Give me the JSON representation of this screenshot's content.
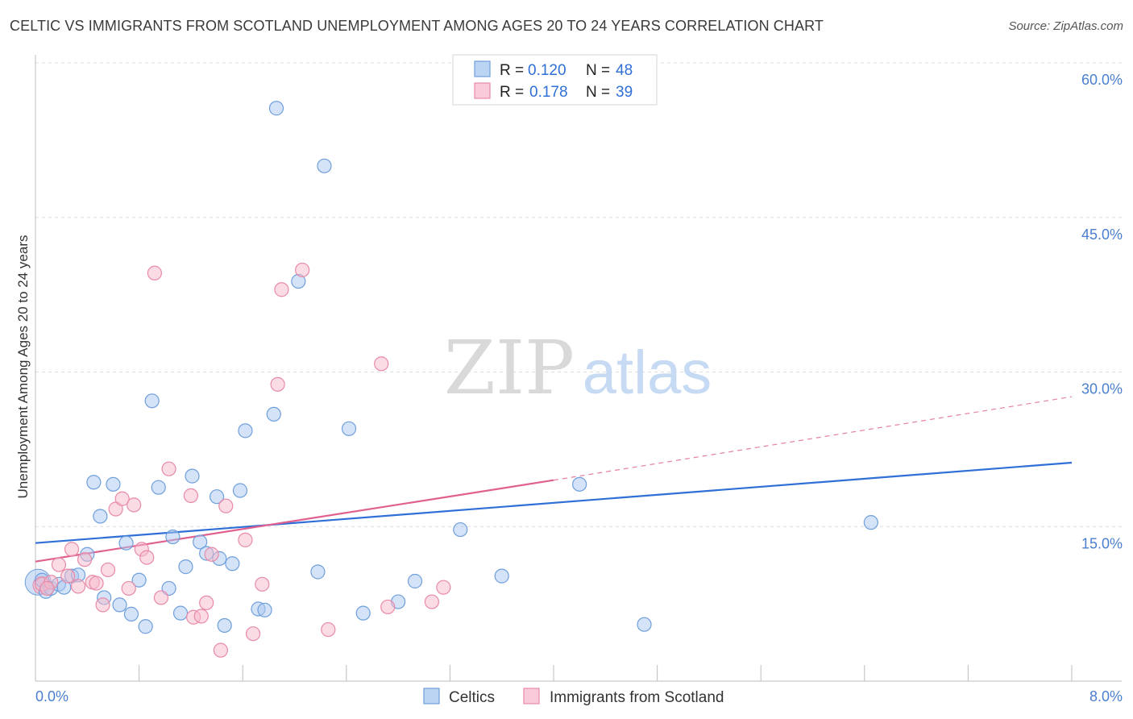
{
  "title": "CELTIC VS IMMIGRANTS FROM SCOTLAND UNEMPLOYMENT AMONG AGES 20 TO 24 YEARS CORRELATION CHART",
  "source": "Source: ZipAtlas.com",
  "watermark": {
    "zip": "ZIP",
    "atlas": "atlas"
  },
  "legend": {
    "rows": [
      {
        "r_label": "R =",
        "r_value": "0.120",
        "n_label": "N =",
        "n_value": "48"
      },
      {
        "r_label": "R =",
        "r_value": "0.178",
        "n_label": "N =",
        "n_value": "39"
      }
    ]
  },
  "bottom_legend": {
    "celtics": "Celtics",
    "scotland": "Immigrants from Scotland"
  },
  "colors": {
    "celtics_fill": "#a9c8f0",
    "celtics_stroke": "#6f9fdc",
    "celtics_line": "#2f6fd6",
    "scotland_fill": "#f7b9cc",
    "scotland_stroke": "#e88aa8",
    "scotland_line": "#e0608f",
    "tick_color": "#4a7fcf"
  },
  "chart_data": {
    "type": "scatter",
    "title": "CELTIC VS IMMIGRANTS FROM SCOTLAND UNEMPLOYMENT AMONG AGES 20 TO 24 YEARS CORRELATION CHART",
    "xlabel": "",
    "ylabel": "Unemployment Among Ages 20 to 24 years",
    "xlim": [
      0,
      8
    ],
    "ylim": [
      0,
      60
    ],
    "x_ticks": [
      "0.0%",
      "8.0%"
    ],
    "y_ticks": [
      "15.0%",
      "30.0%",
      "45.0%",
      "60.0%"
    ],
    "y_tick_values": [
      15,
      30,
      45,
      60
    ],
    "grid": true,
    "legend_position": "top-center",
    "series": [
      {
        "name": "Celtics",
        "r": 0.12,
        "n": 48,
        "points": [
          [
            0.05,
            9.8
          ],
          [
            0.08,
            8.7
          ],
          [
            0.12,
            9.0
          ],
          [
            0.18,
            9.4
          ],
          [
            0.28,
            10.2
          ],
          [
            0.33,
            10.3
          ],
          [
            0.4,
            12.3
          ],
          [
            0.45,
            19.3
          ],
          [
            0.5,
            16.0
          ],
          [
            0.6,
            19.1
          ],
          [
            0.53,
            8.1
          ],
          [
            0.65,
            7.4
          ],
          [
            0.7,
            13.4
          ],
          [
            0.74,
            6.5
          ],
          [
            0.8,
            9.8
          ],
          [
            0.85,
            5.3
          ],
          [
            0.9,
            27.2
          ],
          [
            0.95,
            18.8
          ],
          [
            1.03,
            9.0
          ],
          [
            1.06,
            14.0
          ],
          [
            1.12,
            6.6
          ],
          [
            1.16,
            11.1
          ],
          [
            1.21,
            19.9
          ],
          [
            1.27,
            13.5
          ],
          [
            1.32,
            12.4
          ],
          [
            1.4,
            17.9
          ],
          [
            1.42,
            11.9
          ],
          [
            1.46,
            5.4
          ],
          [
            1.52,
            11.4
          ],
          [
            1.58,
            18.5
          ],
          [
            1.62,
            24.3
          ],
          [
            1.72,
            7.0
          ],
          [
            1.77,
            6.9
          ],
          [
            1.84,
            25.9
          ],
          [
            1.86,
            55.6
          ],
          [
            2.03,
            38.8
          ],
          [
            2.18,
            10.6
          ],
          [
            2.23,
            50.0
          ],
          [
            2.42,
            24.5
          ],
          [
            2.53,
            6.6
          ],
          [
            2.8,
            7.7
          ],
          [
            2.93,
            9.7
          ],
          [
            3.28,
            14.7
          ],
          [
            3.6,
            10.2
          ],
          [
            4.2,
            19.1
          ],
          [
            4.7,
            5.5
          ],
          [
            6.45,
            15.4
          ],
          [
            0.22,
            9.1
          ]
        ]
      },
      {
        "name": "Immigrants from Scotland",
        "r": 0.178,
        "n": 39,
        "points": [
          [
            0.05,
            9.4
          ],
          [
            0.12,
            9.6
          ],
          [
            0.18,
            11.3
          ],
          [
            0.25,
            10.2
          ],
          [
            0.28,
            12.8
          ],
          [
            0.33,
            9.2
          ],
          [
            0.38,
            11.8
          ],
          [
            0.44,
            9.6
          ],
          [
            0.47,
            9.5
          ],
          [
            0.52,
            7.4
          ],
          [
            0.56,
            10.8
          ],
          [
            0.62,
            16.7
          ],
          [
            0.67,
            17.7
          ],
          [
            0.72,
            9.0
          ],
          [
            0.76,
            17.1
          ],
          [
            0.82,
            12.8
          ],
          [
            0.86,
            12.0
          ],
          [
            0.92,
            39.6
          ],
          [
            0.97,
            8.1
          ],
          [
            1.03,
            20.6
          ],
          [
            1.2,
            18.0
          ],
          [
            1.22,
            6.2
          ],
          [
            1.28,
            6.3
          ],
          [
            1.32,
            7.6
          ],
          [
            1.36,
            12.3
          ],
          [
            1.43,
            3.0
          ],
          [
            1.47,
            17.0
          ],
          [
            1.62,
            13.7
          ],
          [
            1.68,
            4.6
          ],
          [
            1.75,
            9.4
          ],
          [
            1.87,
            28.8
          ],
          [
            1.9,
            38.0
          ],
          [
            2.06,
            39.9
          ],
          [
            2.26,
            5.0
          ],
          [
            2.67,
            30.8
          ],
          [
            2.72,
            7.2
          ],
          [
            3.06,
            7.7
          ],
          [
            3.15,
            9.1
          ],
          [
            0.09,
            9.0
          ]
        ]
      }
    ],
    "trend_lines": [
      {
        "name": "Celtics",
        "x": [
          0,
          8
        ],
        "y": [
          13.4,
          21.2
        ]
      },
      {
        "name": "Immigrants from Scotland",
        "x": [
          0,
          4
        ],
        "y": [
          11.6,
          19.5
        ],
        "dashed_extension_x": [
          4,
          8
        ],
        "dashed_extension_y": [
          19.5,
          27.6
        ]
      }
    ]
  }
}
